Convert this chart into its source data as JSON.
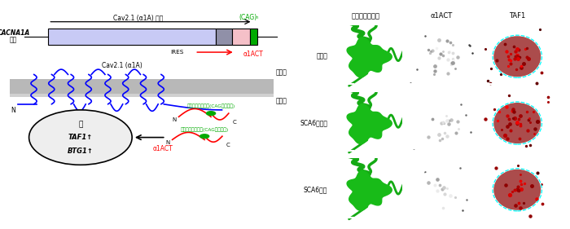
{
  "left_panel": {
    "mrna_label_line1": "CACNA1A",
    "mrna_label_line2": "転写",
    "translation_label": "Cav2.1 (α1A) 翻訳",
    "cag_label": "(CAG)",
    "cag_sub": "n",
    "ires_label": "IRES",
    "a1act_label": "α1ACT",
    "channel_label": "Cav2.1 (α1A)",
    "extracellular_label": "細胞外",
    "intracellular_label": "細胞内",
    "nucleus_label": "核",
    "taf1_label": "TAF1↑",
    "btg1_label": "BTG1↑",
    "polyq_label": "ポリグルタミン酸(CAGリピート)",
    "a1act_bottom_label": "α1ACT",
    "n_label": "N",
    "c_label": "C",
    "box_blue": "#c8caf5",
    "box_gray": "#9090a8",
    "box_pink": "#f5c0c8",
    "box_green": "#00aa00",
    "membrane_color1": "#b8b8b8",
    "membrane_color2": "#d0d0d0"
  },
  "right_panel": {
    "col_labels": [
      "カルビンディン",
      "α1ACT",
      "TAF1"
    ],
    "row_labels": [
      "健常人",
      "SCA6ヘテロ",
      "SCA6ホモ"
    ],
    "bg_green": "#001500",
    "bg_gray": "#080808",
    "bg_red": "#150000",
    "cell_green": "#1acc1a",
    "spot_gray": "#cccccc",
    "spot_red": "#cc1a1a",
    "circle_white": "white",
    "circle_cyan": "cyan"
  }
}
